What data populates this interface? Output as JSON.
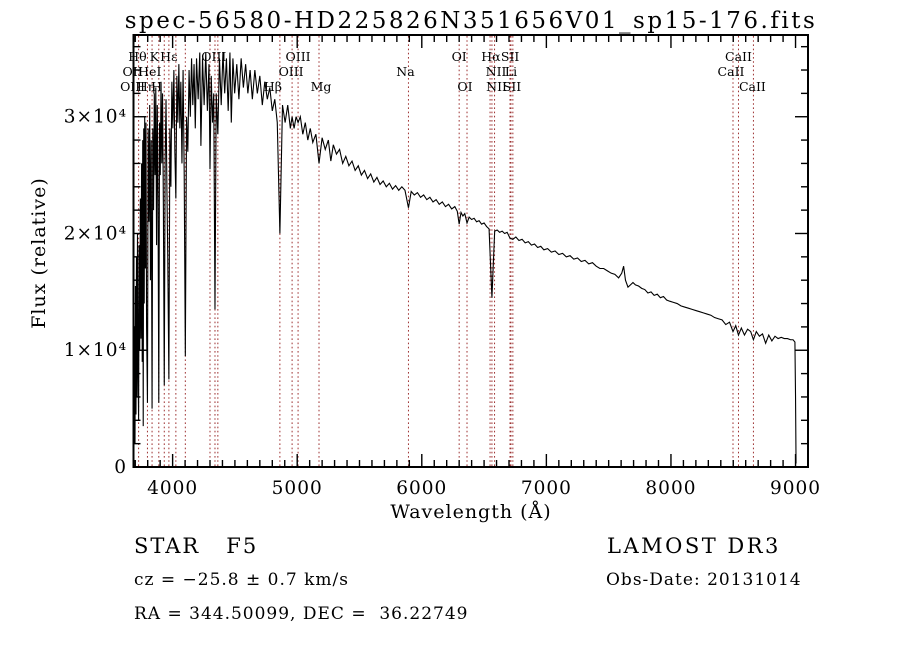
{
  "title": "spec-56580-HD225826N351656V01_sp15-176.fits",
  "footer": {
    "class_and_subclass": "STAR   F5",
    "survey": "LAMOST DR3",
    "cz": "cz = −25.8 ± 0.7 km/s",
    "obs_date": "Obs-Date: 20131014",
    "ra_dec": "RA = 344.50099, DEC =  36.22749"
  },
  "chart_data": {
    "type": "line",
    "title": "spec-56580-HD225826N351656V01_sp15-176.fits",
    "xlabel": "Wavelength (Å)",
    "ylabel": "Flux (relative)",
    "xlim": [
      3686,
      9100
    ],
    "ylim": [
      0,
      37000
    ],
    "grid": false,
    "legend": "none",
    "line_color": "#000000",
    "marker_line_color": "#9e3232",
    "xticks_major": [
      4000,
      5000,
      6000,
      7000,
      8000,
      9000
    ],
    "xticks_minor_step": 100,
    "yticks_major": [
      {
        "value": 0,
        "label": "0"
      },
      {
        "value": 10000,
        "label": "1×10⁴"
      },
      {
        "value": 20000,
        "label": "2×10⁴"
      },
      {
        "value": 30000,
        "label": "3×10⁴"
      }
    ],
    "yticks_minor_step": 2000,
    "dotted_lines_wavelengths": [
      3727,
      3798,
      3835,
      3889,
      3933,
      3970,
      4026,
      4102,
      4300,
      4340,
      4363,
      4861,
      4959,
      5007,
      5175,
      5893,
      6300,
      6363,
      6548,
      6563,
      6584,
      6708,
      6716,
      6731,
      8498,
      8542,
      8662
    ],
    "line_labels": [
      {
        "text": "Hθ",
        "wavelength": 3798,
        "row": 1,
        "dx": -10
      },
      {
        "text": "K",
        "wavelength": 3933,
        "row": 1,
        "dx": -10
      },
      {
        "text": "Hε",
        "wavelength": 3970,
        "row": 1,
        "dx": 0
      },
      {
        "text": "OIII",
        "wavelength": 4363,
        "row": 1,
        "dx": -4
      },
      {
        "text": "OIII",
        "wavelength": 5007,
        "row": 1,
        "dx": 0
      },
      {
        "text": "OI",
        "wavelength": 6300,
        "row": 1,
        "dx": 0
      },
      {
        "text": "Hα",
        "wavelength": 6563,
        "row": 1,
        "dx": -1
      },
      {
        "text": "SII",
        "wavelength": 6717,
        "row": 1,
        "dx": -1
      },
      {
        "text": "CaII",
        "wavelength": 8542,
        "row": 1,
        "dx": 0
      },
      {
        "text": "OII",
        "wavelength": 3727,
        "row": 2,
        "dx": -6
      },
      {
        "text": "HeI",
        "wavelength": 3889,
        "row": 2,
        "dx": -9
      },
      {
        "text": "OIII",
        "wavelength": 4959,
        "row": 2,
        "dx": -1
      },
      {
        "text": "Na",
        "wavelength": 5893,
        "row": 2,
        "dx": -3
      },
      {
        "text": "NII",
        "wavelength": 6548,
        "row": 2,
        "dx": 6
      },
      {
        "text": "Li",
        "wavelength": 6708,
        "row": 2,
        "dx": 1
      },
      {
        "text": "CaII",
        "wavelength": 8498,
        "row": 2,
        "dx": -2
      },
      {
        "text": "OIII",
        "wavelength": 3727,
        "row": 3,
        "dx": -6
      },
      {
        "text": "Hη",
        "wavelength": 3835,
        "row": 3,
        "dx": -6
      },
      {
        "text": "H",
        "wavelength": 3968,
        "row": 3,
        "dx": -12
      },
      {
        "text": "Hβ",
        "wavelength": 4861,
        "row": 3,
        "dx": -7
      },
      {
        "text": "Mg",
        "wavelength": 5175,
        "row": 3,
        "dx": 2
      },
      {
        "text": "OI",
        "wavelength": 6363,
        "row": 3,
        "dx": -2
      },
      {
        "text": "NII",
        "wavelength": 6584,
        "row": 3,
        "dx": 2
      },
      {
        "text": "SII",
        "wavelength": 6724,
        "row": 3,
        "dx": 0
      },
      {
        "text": "CaII",
        "wavelength": 8662,
        "row": 3,
        "dx": -1
      }
    ],
    "series": [
      {
        "name": "spectrum",
        "y_multiplier": 10000,
        "x": [
          3690,
          3694,
          3698,
          3702,
          3706,
          3710,
          3714,
          3718,
          3722,
          3727,
          3731,
          3736,
          3741,
          3746,
          3751,
          3756,
          3760,
          3764,
          3768,
          3772,
          3776,
          3781,
          3786,
          3791,
          3798,
          3804,
          3810,
          3816,
          3822,
          3828,
          3835,
          3841,
          3847,
          3853,
          3859,
          3865,
          3871,
          3877,
          3883,
          3889,
          3895,
          3901,
          3907,
          3913,
          3919,
          3926,
          3933,
          3940,
          3947,
          3954,
          3961,
          3970,
          3978,
          3986,
          3994,
          4002,
          4010,
          4018,
          4026,
          4034,
          4042,
          4050,
          4058,
          4066,
          4075,
          4084,
          4093,
          4102,
          4112,
          4122,
          4132,
          4142,
          4152,
          4162,
          4172,
          4182,
          4192,
          4205,
          4218,
          4227,
          4240,
          4253,
          4266,
          4279,
          4292,
          4300,
          4310,
          4320,
          4330,
          4340,
          4350,
          4363,
          4376,
          4390,
          4404,
          4418,
          4432,
          4446,
          4460,
          4471,
          4484,
          4498,
          4515,
          4532,
          4550,
          4568,
          4586,
          4604,
          4622,
          4640,
          4660,
          4680,
          4700,
          4720,
          4740,
          4760,
          4780,
          4800,
          4820,
          4840,
          4861,
          4882,
          4903,
          4924,
          4945,
          4959,
          4975,
          4991,
          5007,
          5025,
          5045,
          5065,
          5085,
          5105,
          5125,
          5150,
          5175,
          5200,
          5225,
          5250,
          5270,
          5290,
          5315,
          5340,
          5365,
          5390,
          5415,
          5440,
          5465,
          5490,
          5515,
          5540,
          5565,
          5590,
          5615,
          5640,
          5665,
          5690,
          5715,
          5740,
          5765,
          5790,
          5815,
          5840,
          5865,
          5893,
          5915,
          5940,
          5965,
          5990,
          6015,
          6040,
          6065,
          6090,
          6115,
          6140,
          6165,
          6190,
          6215,
          6240,
          6265,
          6285,
          6300,
          6315,
          6330,
          6345,
          6363,
          6380,
          6400,
          6420,
          6440,
          6460,
          6480,
          6500,
          6520,
          6540,
          6563,
          6585,
          6605,
          6625,
          6645,
          6665,
          6685,
          6708,
          6731,
          6755,
          6780,
          6805,
          6830,
          6855,
          6880,
          6905,
          6930,
          6955,
          6980,
          7010,
          7040,
          7070,
          7100,
          7130,
          7160,
          7190,
          7220,
          7250,
          7280,
          7310,
          7340,
          7370,
          7400,
          7430,
          7460,
          7490,
          7520,
          7550,
          7580,
          7605,
          7620,
          7635,
          7655,
          7675,
          7695,
          7715,
          7740,
          7765,
          7790,
          7815,
          7840,
          7865,
          7890,
          7915,
          7940,
          7965,
          7990,
          8020,
          8050,
          8080,
          8110,
          8140,
          8170,
          8200,
          8230,
          8260,
          8290,
          8320,
          8350,
          8380,
          8410,
          8440,
          8470,
          8498,
          8520,
          8542,
          8565,
          8590,
          8615,
          8640,
          8662,
          8685,
          8710,
          8735,
          8760,
          8785,
          8810,
          8835,
          8860,
          8885,
          8910,
          8935,
          8960,
          8980,
          8995,
          9000,
          9004
        ],
        "y": [
          0.3,
          1.2,
          0.2,
          1.55,
          0.45,
          1.8,
          0.6,
          2.0,
          0.9,
          0.4,
          1.9,
          1.0,
          2.3,
          1.1,
          2.6,
          0.9,
          2.8,
          0.35,
          2.9,
          1.4,
          3.0,
          1.7,
          2.95,
          1.2,
          0.55,
          2.9,
          2.1,
          3.1,
          1.6,
          2.8,
          0.5,
          2.9,
          2.2,
          3.2,
          2.5,
          3.25,
          1.9,
          3.1,
          2.3,
          0.55,
          2.95,
          2.5,
          3.3,
          2.6,
          3.2,
          2.2,
          0.7,
          2.6,
          3.15,
          2.4,
          1.8,
          0.75,
          2.9,
          2.4,
          3.3,
          2.9,
          3.4,
          2.7,
          2.3,
          3.35,
          2.95,
          3.45,
          2.9,
          3.3,
          2.6,
          3.4,
          2.5,
          0.95,
          3.0,
          2.7,
          3.4,
          3.0,
          3.5,
          3.1,
          3.45,
          2.9,
          3.5,
          3.15,
          3.55,
          2.75,
          3.5,
          3.1,
          3.55,
          3.05,
          3.45,
          2.55,
          3.35,
          2.95,
          3.2,
          1.35,
          3.2,
          2.85,
          3.5,
          3.1,
          3.55,
          3.2,
          3.5,
          3.05,
          3.55,
          2.95,
          3.5,
          3.2,
          3.45,
          3.15,
          3.5,
          3.25,
          3.45,
          3.2,
          3.4,
          3.15,
          3.4,
          3.2,
          3.35,
          3.1,
          3.3,
          3.15,
          3.25,
          3.05,
          3.15,
          2.95,
          2.0,
          3.1,
          2.95,
          3.1,
          2.9,
          3.0,
          2.9,
          3.0,
          2.95,
          3.0,
          2.85,
          2.95,
          2.8,
          2.9,
          2.78,
          2.85,
          2.6,
          2.82,
          2.72,
          2.8,
          2.62,
          2.76,
          2.68,
          2.72,
          2.6,
          2.66,
          2.58,
          2.62,
          2.54,
          2.58,
          2.5,
          2.54,
          2.47,
          2.51,
          2.44,
          2.48,
          2.42,
          2.45,
          2.4,
          2.43,
          2.38,
          2.41,
          2.37,
          2.4,
          2.37,
          2.22,
          2.36,
          2.33,
          2.35,
          2.31,
          2.33,
          2.29,
          2.31,
          2.27,
          2.29,
          2.25,
          2.27,
          2.23,
          2.25,
          2.21,
          2.23,
          2.19,
          2.08,
          2.18,
          2.15,
          2.17,
          2.09,
          2.14,
          2.12,
          2.13,
          2.1,
          2.11,
          2.08,
          2.09,
          2.06,
          2.04,
          1.45,
          2.02,
          2.03,
          2.01,
          2.02,
          2.0,
          2.01,
          1.96,
          1.95,
          1.97,
          1.94,
          1.95,
          1.92,
          1.93,
          1.9,
          1.91,
          1.88,
          1.89,
          1.86,
          1.87,
          1.84,
          1.85,
          1.82,
          1.83,
          1.8,
          1.81,
          1.78,
          1.79,
          1.76,
          1.77,
          1.74,
          1.75,
          1.72,
          1.7,
          1.7,
          1.68,
          1.66,
          1.65,
          1.62,
          1.66,
          1.72,
          1.6,
          1.54,
          1.56,
          1.58,
          1.56,
          1.55,
          1.53,
          1.52,
          1.49,
          1.5,
          1.47,
          1.48,
          1.45,
          1.46,
          1.43,
          1.42,
          1.41,
          1.4,
          1.38,
          1.37,
          1.36,
          1.35,
          1.34,
          1.33,
          1.32,
          1.31,
          1.3,
          1.28,
          1.27,
          1.26,
          1.22,
          1.24,
          1.16,
          1.21,
          1.13,
          1.19,
          1.13,
          1.18,
          1.16,
          1.09,
          1.16,
          1.12,
          1.14,
          1.06,
          1.13,
          1.08,
          1.12,
          1.1,
          1.11,
          1.1,
          1.1,
          1.09,
          1.09,
          1.07,
          0.6,
          0.03
        ]
      }
    ]
  },
  "plot_geometry_note": "single spectrum panel with inward ticks on all four sides"
}
